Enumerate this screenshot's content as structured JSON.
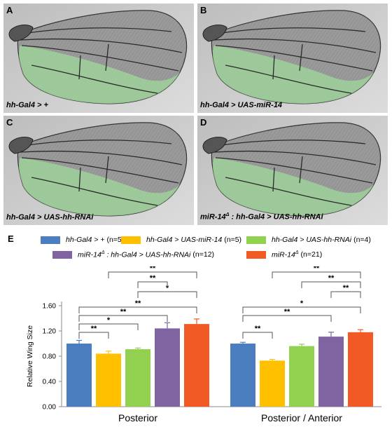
{
  "panels": [
    {
      "letter": "A",
      "caption": "hh-Gal4 > +"
    },
    {
      "letter": "B",
      "caption": "hh-Gal4 > UAS-miR-14"
    },
    {
      "letter": "C",
      "caption": "hh-Gal4 > UAS-hh-RNAi"
    },
    {
      "letter": "D",
      "caption_prefix": "miR-14",
      "caption_sup": "Δ",
      "caption_suffix": " : hh-Gal4 > UAS-hh-RNAi"
    }
  ],
  "panel_e_label": "E",
  "legend": [
    {
      "label": "hh-Gal4 > +",
      "n": "(n=5)",
      "color": "#4a7ebf"
    },
    {
      "label": "hh-Gal4 > UAS-miR-14",
      "n": "(n=5)",
      "color": "#ffc000"
    },
    {
      "label": "hh-Gal4 > UAS-hh-RNAi",
      "n": "(n=4)",
      "color": "#92d050"
    },
    {
      "label_prefix": "miR-14",
      "sup": "Δ",
      "label_suffix": " : hh-Gal4 > UAS-hh-RNAi",
      "n": "(n=12)",
      "color": "#8064a2"
    },
    {
      "label_prefix": "miR-14",
      "sup": "Δ",
      "label_suffix": "",
      "n": "(n=21)",
      "color": "#f15a24"
    }
  ],
  "chart_data": {
    "type": "bar",
    "categories": [
      "Posterior",
      "Posterior / Anterior"
    ],
    "series": [
      {
        "name": "hh-Gal4 > + (n=5)",
        "values": [
          1.0,
          1.0
        ],
        "errors": [
          0.05,
          0.02
        ],
        "color": "#4a7ebf"
      },
      {
        "name": "hh-Gal4 > UAS-miR-14 (n=5)",
        "values": [
          0.84,
          0.73
        ],
        "errors": [
          0.04,
          0.02
        ],
        "color": "#ffc000"
      },
      {
        "name": "hh-Gal4 > UAS-hh-RNAi (n=4)",
        "values": [
          0.91,
          0.96
        ],
        "errors": [
          0.02,
          0.03
        ],
        "color": "#92d050"
      },
      {
        "name": "miR-14Δ : hh-Gal4 > UAS-hh-RNAi (n=12)",
        "values": [
          1.24,
          1.11
        ],
        "errors": [
          0.09,
          0.07
        ],
        "color": "#8064a2"
      },
      {
        "name": "miR-14Δ (n=21)",
        "values": [
          1.31,
          1.18
        ],
        "errors": [
          0.08,
          0.04
        ],
        "color": "#f15a24"
      }
    ],
    "ylabel": "Relative Wing Size",
    "ylim": [
      0,
      1.6
    ],
    "yticks": [
      "0.00",
      "0.40",
      "0.80",
      "1.20",
      "1.60"
    ],
    "significance": [
      {
        "group": 0,
        "from": 0,
        "to": 1,
        "level": 1,
        "label": "**"
      },
      {
        "group": 0,
        "from": 0,
        "to": 2,
        "level": 2,
        "label": "*"
      },
      {
        "group": 0,
        "from": 0,
        "to": 3,
        "level": 3,
        "label": "**"
      },
      {
        "group": 0,
        "from": 0,
        "to": 4,
        "level": 4,
        "label": "**"
      },
      {
        "group": 0,
        "from": 2,
        "to": 4,
        "level": 5,
        "label": "*"
      },
      {
        "group": 0,
        "from": 2,
        "to": 3,
        "level": 6,
        "label": "**"
      },
      {
        "group": 0,
        "from": 1,
        "to": 4,
        "level": 7,
        "label": "**"
      },
      {
        "group": 1,
        "from": 0,
        "to": 1,
        "level": 1,
        "label": "**"
      },
      {
        "group": 1,
        "from": 0,
        "to": 3,
        "level": 3,
        "label": "**"
      },
      {
        "group": 1,
        "from": 0,
        "to": 4,
        "level": 4,
        "label": "*"
      },
      {
        "group": 1,
        "from": 3,
        "to": 4,
        "level": 5,
        "label": "**"
      },
      {
        "group": 1,
        "from": 2,
        "to": 4,
        "level": 6,
        "label": "**"
      },
      {
        "group": 1,
        "from": 1,
        "to": 4,
        "level": 7,
        "label": "**"
      }
    ]
  }
}
